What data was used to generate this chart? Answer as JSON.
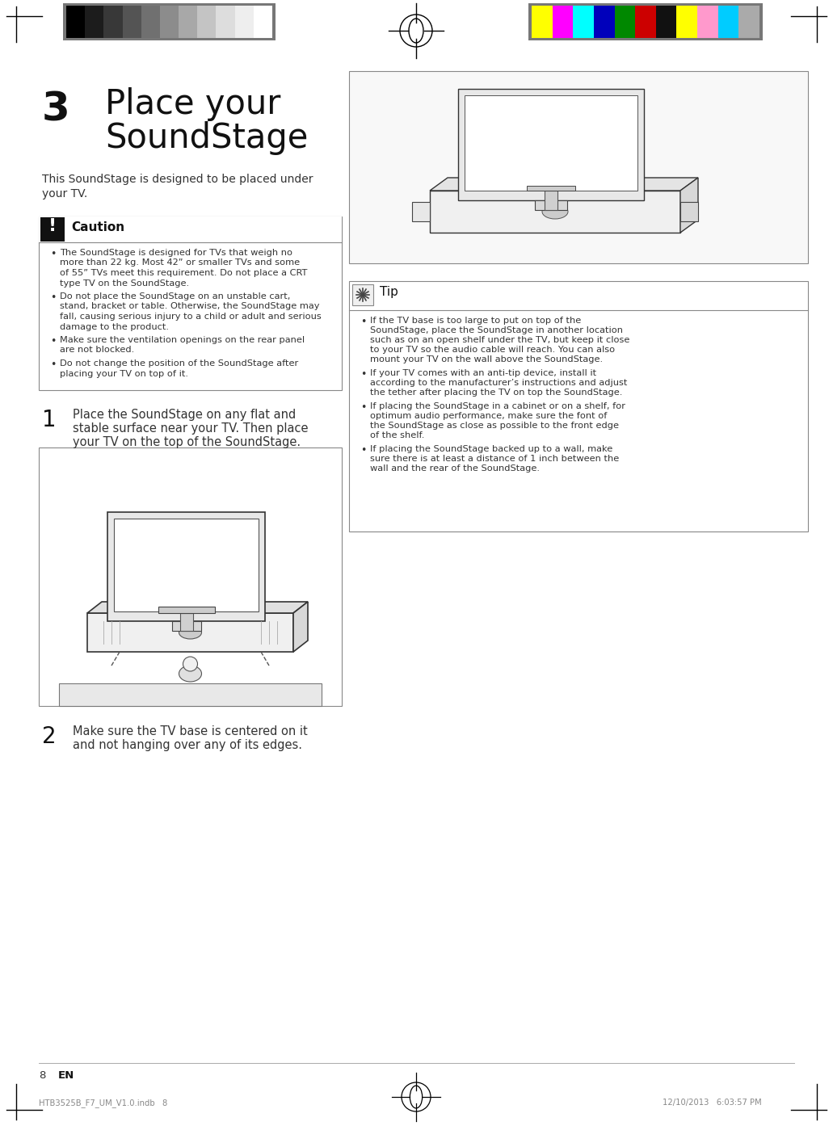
{
  "bg_color": "#ffffff",
  "page_number": "8",
  "page_lang": "EN",
  "footer_left": "HTB3525B_F7_UM_V1.0.indb   8",
  "footer_right": "12/10/2013   6:03:57 PM",
  "title_number": "3",
  "title_line1": "Place your",
  "title_line2": "SoundStage",
  "intro_text": "This SoundStage is designed to be placed under\nyour TV.",
  "caution_title": "Caution",
  "caution_bullets": [
    "The SoundStage is designed for TVs that weigh no\nmore than 22 kg. Most 42” or smaller TVs and some\nof 55” TVs meet this requirement. Do not place a CRT\ntype TV on the SoundStage.",
    "Do not place the SoundStage on an unstable cart,\nstand, bracket or table. Otherwise, the SoundStage may\nfall, causing serious injury to a child or adult and serious\ndamage to the product.",
    "Make sure the ventilation openings on the rear panel\nare not blocked.",
    "Do not change the position of the SoundStage after\nplacing your TV on top of it."
  ],
  "tip_title": "Tip",
  "tip_bullets": [
    "If the TV base is too large to put on top of the\nSoundStage, place the SoundStage in another location\nsuch as on an open shelf under the TV, but keep it close\nto your TV so the audio cable will reach. You can also\nmount your TV on the wall above the SoundStage.",
    "If your TV comes with an anti-tip device, install it\naccording to the manufacturer’s instructions and adjust\nthe tether after placing the TV on top the SoundStage.",
    "If placing the SoundStage in a cabinet or on a shelf, for\noptimum audio performance, make sure the font of\nthe SoundStage as close as possible to the front edge\nof the shelf.",
    "If placing the SoundStage backed up to a wall, make\nsure there is at least a distance of 1 inch between the\nwall and the rear of the SoundStage."
  ],
  "step1_number": "1",
  "step1_text": "Place the SoundStage on any flat and\nstable surface near your TV. Then place\nyour TV on the top of the SoundStage.",
  "step2_number": "2",
  "step2_text": "Make sure the TV base is centered on it\nand not hanging over any of its edges.",
  "grayscale_colors": [
    "#000000",
    "#1c1c1c",
    "#383838",
    "#545454",
    "#707070",
    "#8c8c8c",
    "#a8a8a8",
    "#c4c4c4",
    "#dddddd",
    "#eeeeee",
    "#ffffff"
  ],
  "color_bars": [
    "#ffff00",
    "#ff00ff",
    "#00ffff",
    "#0000bb",
    "#008800",
    "#cc0000",
    "#111111",
    "#ffff00",
    "#ff99cc",
    "#00ccff",
    "#aaaaaa"
  ],
  "caution_icon_color": "#111111",
  "tip_icon_color": "#888888",
  "box_border_color": "#999999",
  "text_color": "#222222",
  "line_color": "#999999"
}
